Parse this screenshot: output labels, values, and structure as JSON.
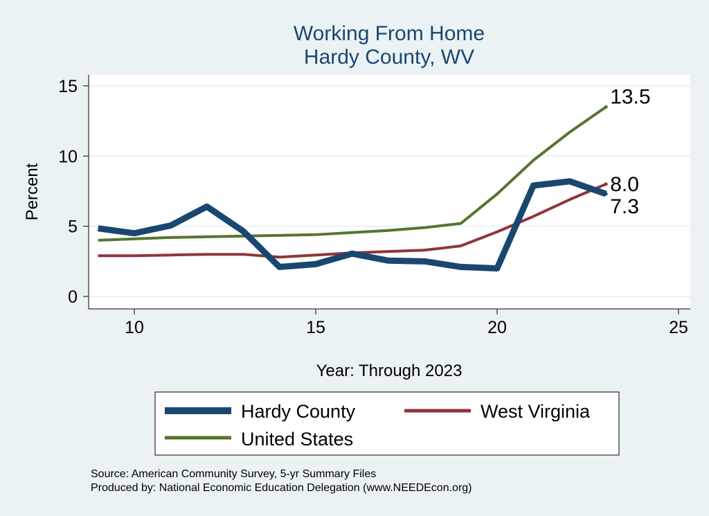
{
  "chart_data": {
    "type": "line",
    "title": "Working From Home",
    "subtitle": "Hardy County, WV",
    "xlabel": "Year: Through 2023",
    "ylabel": "Percent",
    "xlim": [
      8.7,
      25.3
    ],
    "ylim": [
      -0.9,
      15.8
    ],
    "xticks": [
      10,
      15,
      20,
      25
    ],
    "yticks": [
      0,
      5,
      10,
      15
    ],
    "grid": true,
    "legend_placement": "bottom",
    "x": [
      9,
      10,
      11,
      12,
      13,
      14,
      15,
      16,
      17,
      18,
      19,
      20,
      21,
      22,
      23
    ],
    "series": [
      {
        "name": "Hardy County",
        "color": "#1a476f",
        "values": [
          4.85,
          4.5,
          5.05,
          6.4,
          4.65,
          2.1,
          2.3,
          3.05,
          2.55,
          2.5,
          2.1,
          2.0,
          7.9,
          8.2,
          7.3
        ],
        "end_label": "7.3"
      },
      {
        "name": "West Virginia",
        "color": "#90353b",
        "values": [
          2.9,
          2.9,
          2.95,
          3.0,
          3.0,
          2.8,
          2.95,
          3.1,
          3.2,
          3.3,
          3.6,
          4.6,
          5.7,
          6.9,
          8.0
        ],
        "end_label": "8.0"
      },
      {
        "name": "United States",
        "color": "#55752f",
        "values": [
          4.0,
          4.1,
          4.2,
          4.25,
          4.3,
          4.35,
          4.4,
          4.55,
          4.7,
          4.9,
          5.2,
          7.3,
          9.7,
          11.7,
          13.5
        ],
        "end_label": "13.5"
      }
    ]
  },
  "notes": [
    "Source: American Community Survey, 5-yr Summary Files",
    "Produced by: National Economic Education Delegation (www.NEEDEcon.org)"
  ]
}
